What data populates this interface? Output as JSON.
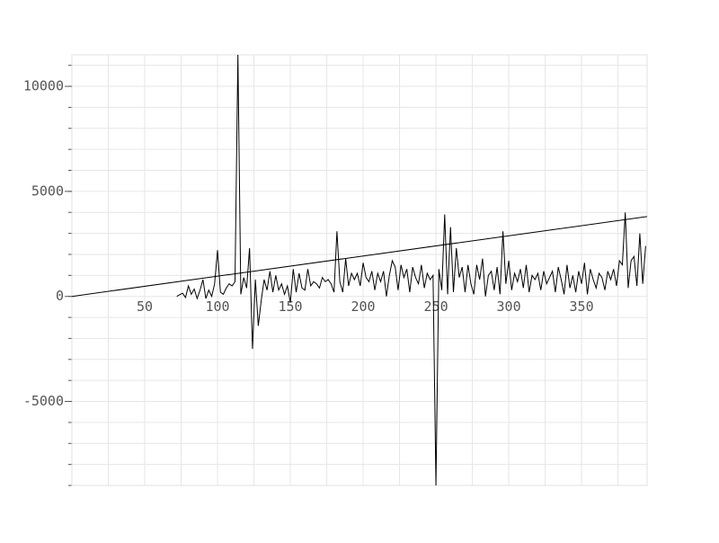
{
  "chart_data": {
    "type": "line",
    "xlim": [
      0,
      395
    ],
    "ylim": [
      -9000,
      11500
    ],
    "xticks": [
      50,
      100,
      150,
      200,
      250,
      300,
      350
    ],
    "yticks": [
      -5000,
      0,
      5000,
      10000
    ],
    "x_grid_lines": [
      25,
      50,
      75,
      100,
      125,
      150,
      175,
      200,
      225,
      250,
      275,
      300,
      325,
      350,
      375
    ],
    "y_minor_ticks": [
      -9000,
      -8000,
      -7000,
      -6000,
      -5000,
      -4000,
      -3000,
      -2000,
      -1000,
      0,
      1000,
      2000,
      3000,
      4000,
      5000,
      6000,
      7000,
      8000,
      9000,
      10000,
      11000
    ],
    "grid": true,
    "series": [
      {
        "color": "#000000",
        "x": [
          0,
          395
        ],
        "values": [
          0,
          3800
        ]
      },
      {
        "color": "#000000",
        "x": [
          72,
          74,
          76,
          78,
          80,
          82,
          84,
          86,
          88,
          90,
          92,
          94,
          96,
          98,
          100,
          102,
          104,
          106,
          108,
          110,
          112,
          114,
          116,
          118,
          120,
          122,
          124,
          126,
          128,
          130,
          132,
          134,
          136,
          138,
          140,
          142,
          144,
          146,
          148,
          150,
          152,
          154,
          156,
          158,
          160,
          162,
          164,
          166,
          168,
          170,
          172,
          174,
          176,
          178,
          180,
          182,
          184,
          186,
          188,
          190,
          192,
          194,
          196,
          198,
          200,
          202,
          204,
          206,
          208,
          210,
          212,
          214,
          216,
          218,
          220,
          222,
          224,
          226,
          228,
          230,
          232,
          234,
          236,
          238,
          240,
          242,
          244,
          246,
          248,
          250,
          252,
          254,
          256,
          258,
          260,
          262,
          264,
          266,
          268,
          270,
          272,
          274,
          276,
          278,
          280,
          282,
          284,
          286,
          288,
          290,
          292,
          294,
          296,
          298,
          300,
          302,
          304,
          306,
          308,
          310,
          312,
          314,
          316,
          318,
          320,
          322,
          324,
          326,
          328,
          330,
          332,
          334,
          336,
          338,
          340,
          342,
          344,
          346,
          348,
          350,
          352,
          354,
          356,
          358,
          360,
          362,
          364,
          366,
          368,
          370,
          372,
          374,
          376,
          378,
          380,
          382,
          384,
          386,
          388,
          390,
          392,
          394
        ],
        "values": [
          0,
          80,
          150,
          -50,
          500,
          100,
          350,
          -100,
          300,
          800,
          -100,
          300,
          0,
          600,
          2200,
          200,
          100,
          400,
          600,
          500,
          700,
          11500,
          100,
          900,
          400,
          2300,
          -2500,
          800,
          -1400,
          -200,
          800,
          300,
          1200,
          200,
          1000,
          300,
          600,
          100,
          500,
          -300,
          1300,
          200,
          1100,
          400,
          300,
          1300,
          500,
          700,
          600,
          400,
          900,
          700,
          800,
          600,
          200,
          3100,
          700,
          200,
          1800,
          500,
          1100,
          800,
          1100,
          500,
          1600,
          900,
          700,
          1200,
          300,
          1100,
          700,
          1200,
          0,
          1000,
          1700,
          1400,
          300,
          1500,
          900,
          1300,
          200,
          1400,
          900,
          600,
          1500,
          400,
          1100,
          800,
          1000,
          -9000,
          1300,
          300,
          3900,
          100,
          3300,
          200,
          2300,
          900,
          1400,
          200,
          1500,
          600,
          100,
          1500,
          800,
          1800,
          0,
          1000,
          1200,
          300,
          1400,
          100,
          3100,
          600,
          1700,
          300,
          1100,
          700,
          1300,
          400,
          1500,
          200,
          1000,
          800,
          1100,
          300,
          1200,
          600,
          900,
          1200,
          200,
          1400,
          800,
          100,
          1500,
          400,
          1000,
          200,
          1200,
          600,
          1600,
          100,
          1300,
          800,
          400,
          1100,
          900,
          300,
          1200,
          800,
          1300,
          500,
          1700,
          1500,
          4000,
          400,
          1700,
          1900,
          500,
          3000,
          600,
          2400
        ]
      }
    ]
  }
}
